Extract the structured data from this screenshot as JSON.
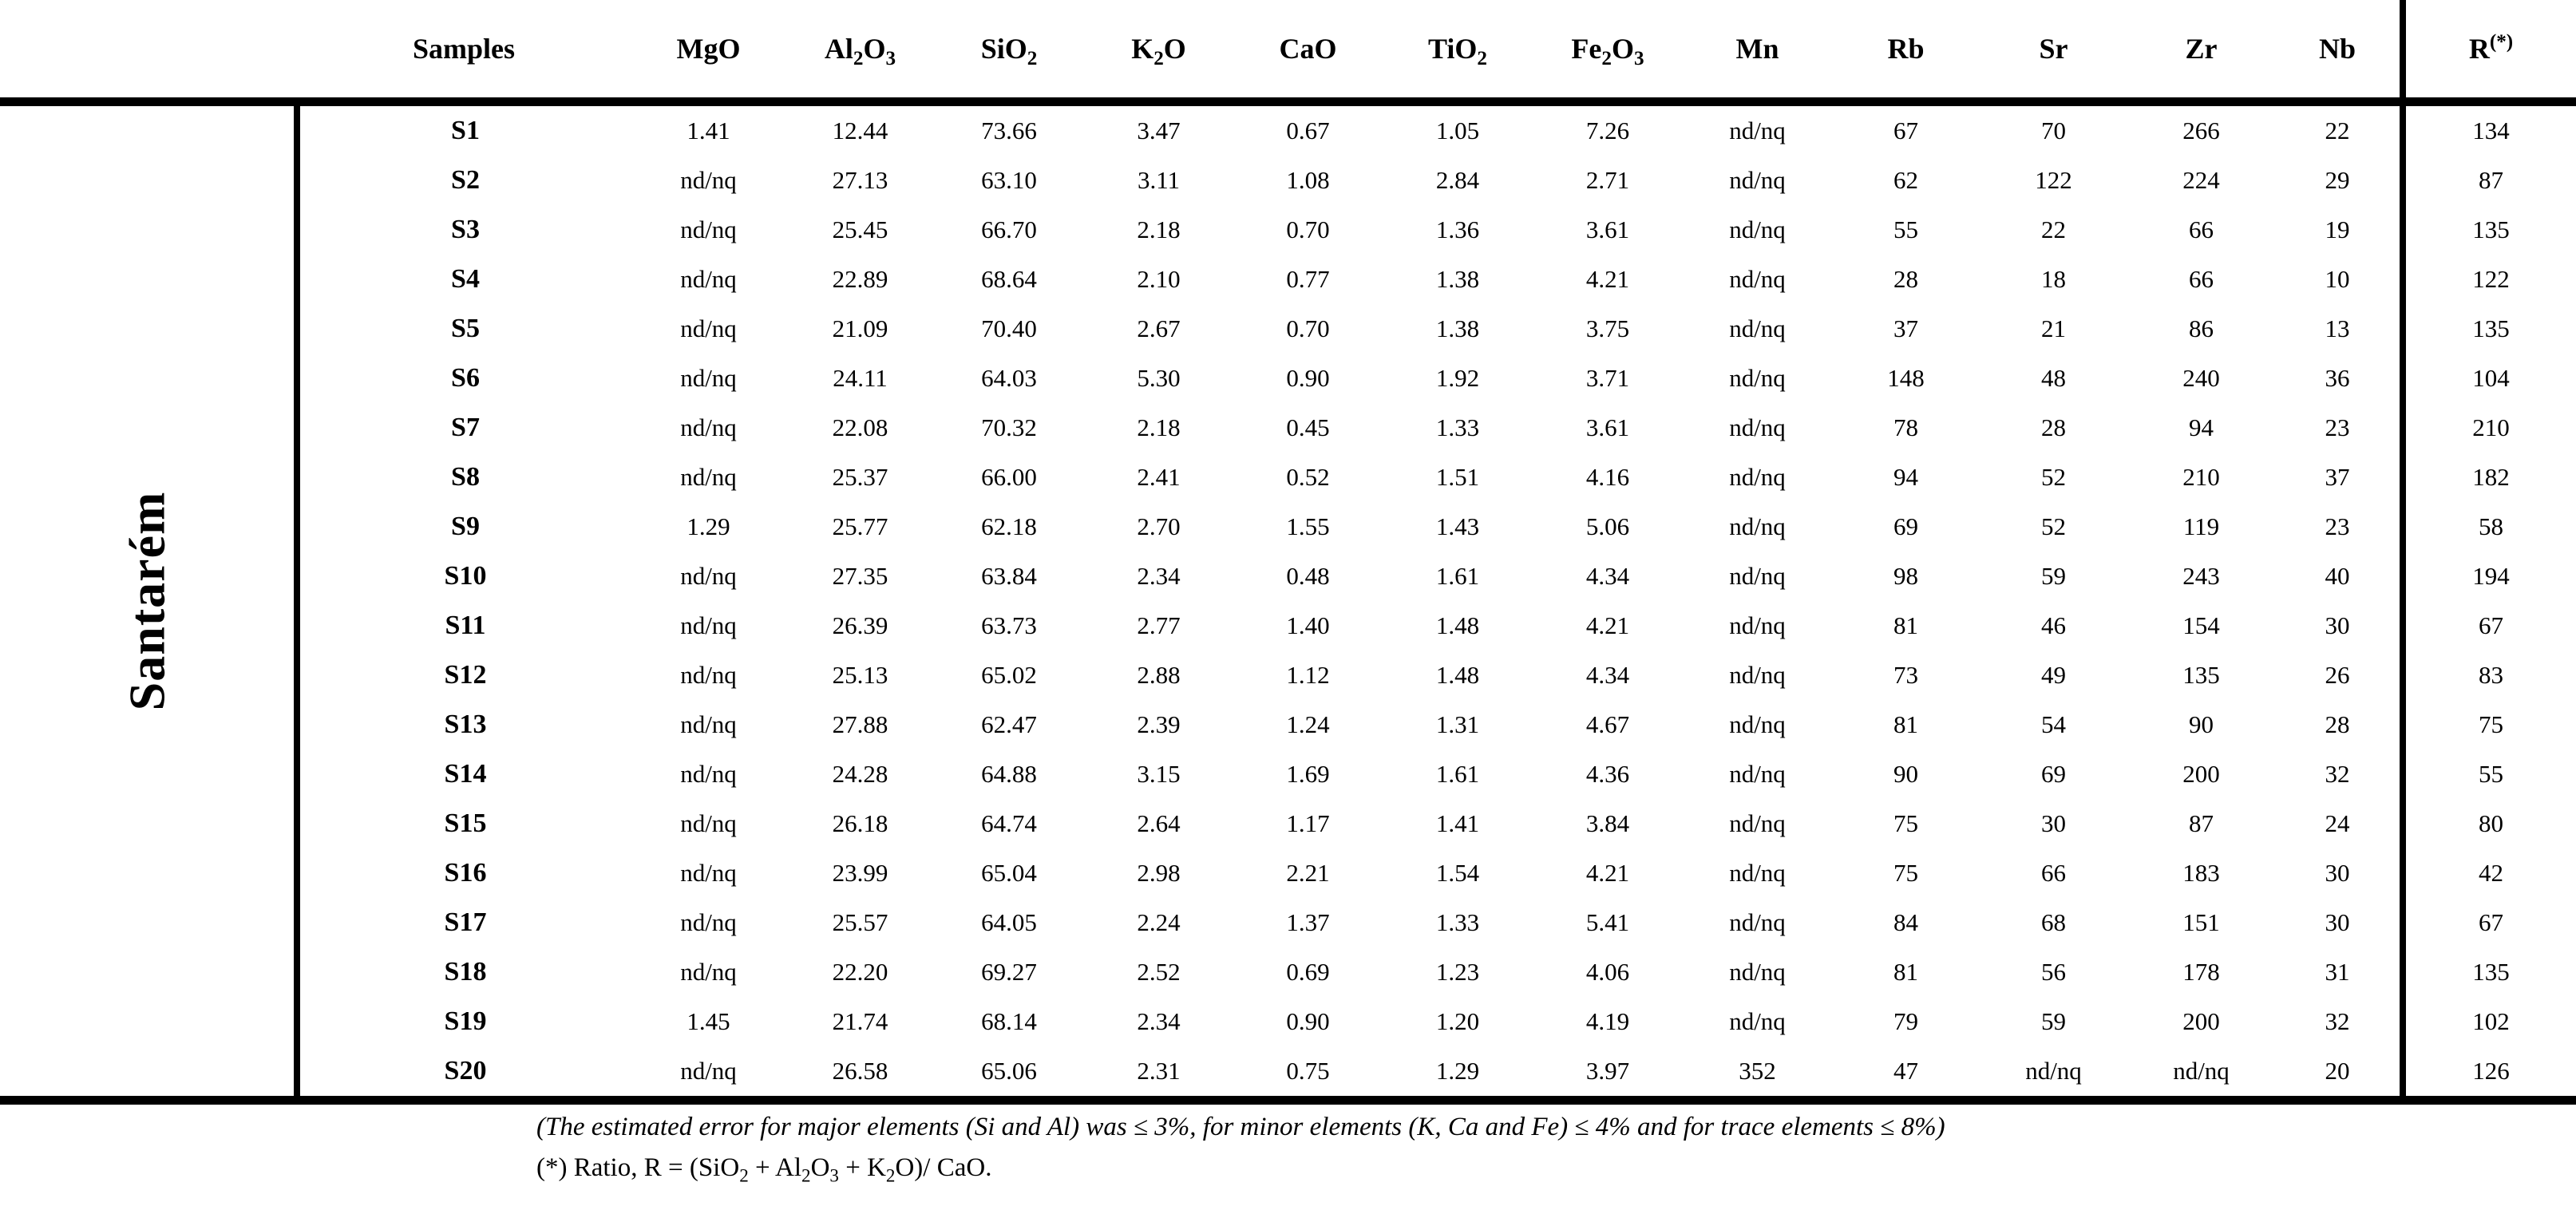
{
  "page": {
    "background": "#ffffff",
    "text_color": "#000000",
    "rule_color": "#000000"
  },
  "table": {
    "group_label": "Santarém",
    "na_marker": "nd/nq",
    "columns": [
      {
        "id": "samples",
        "label": "Samples",
        "fmt": "plain"
      },
      {
        "id": "mgo",
        "label": "MgO",
        "fmt": "chem"
      },
      {
        "id": "al2o3",
        "label": "Al2O3",
        "fmt": "chem"
      },
      {
        "id": "sio2",
        "label": "SiO2",
        "fmt": "chem"
      },
      {
        "id": "k2o",
        "label": "K2O",
        "fmt": "chem"
      },
      {
        "id": "cao",
        "label": "CaO",
        "fmt": "chem"
      },
      {
        "id": "tio2",
        "label": "TiO2",
        "fmt": "chem"
      },
      {
        "id": "fe2o3",
        "label": "Fe2O3",
        "fmt": "chem"
      },
      {
        "id": "mn",
        "label": "Mn",
        "fmt": "plain"
      },
      {
        "id": "rb",
        "label": "Rb",
        "fmt": "plain"
      },
      {
        "id": "sr",
        "label": "Sr",
        "fmt": "plain"
      },
      {
        "id": "zr",
        "label": "Zr",
        "fmt": "plain"
      },
      {
        "id": "nb",
        "label": "Nb",
        "fmt": "plain"
      },
      {
        "id": "r",
        "label": "R(*)",
        "fmt": "rsup"
      }
    ],
    "rows": [
      {
        "id": "S1",
        "values": [
          "1.41",
          "12.44",
          "73.66",
          "3.47",
          "0.67",
          "1.05",
          "7.26",
          "nd/nq",
          "67",
          "70",
          "266",
          "22",
          "134"
        ]
      },
      {
        "id": "S2",
        "values": [
          "nd/nq",
          "27.13",
          "63.10",
          "3.11",
          "1.08",
          "2.84",
          "2.71",
          "nd/nq",
          "62",
          "122",
          "224",
          "29",
          "87"
        ]
      },
      {
        "id": "S3",
        "values": [
          "nd/nq",
          "25.45",
          "66.70",
          "2.18",
          "0.70",
          "1.36",
          "3.61",
          "nd/nq",
          "55",
          "22",
          "66",
          "19",
          "135"
        ]
      },
      {
        "id": "S4",
        "values": [
          "nd/nq",
          "22.89",
          "68.64",
          "2.10",
          "0.77",
          "1.38",
          "4.21",
          "nd/nq",
          "28",
          "18",
          "66",
          "10",
          "122"
        ]
      },
      {
        "id": "S5",
        "values": [
          "nd/nq",
          "21.09",
          "70.40",
          "2.67",
          "0.70",
          "1.38",
          "3.75",
          "nd/nq",
          "37",
          "21",
          "86",
          "13",
          "135"
        ]
      },
      {
        "id": "S6",
        "values": [
          "nd/nq",
          "24.11",
          "64.03",
          "5.30",
          "0.90",
          "1.92",
          "3.71",
          "nd/nq",
          "148",
          "48",
          "240",
          "36",
          "104"
        ]
      },
      {
        "id": "S7",
        "values": [
          "nd/nq",
          "22.08",
          "70.32",
          "2.18",
          "0.45",
          "1.33",
          "3.61",
          "nd/nq",
          "78",
          "28",
          "94",
          "23",
          "210"
        ]
      },
      {
        "id": "S8",
        "values": [
          "nd/nq",
          "25.37",
          "66.00",
          "2.41",
          "0.52",
          "1.51",
          "4.16",
          "nd/nq",
          "94",
          "52",
          "210",
          "37",
          "182"
        ]
      },
      {
        "id": "S9",
        "values": [
          "1.29",
          "25.77",
          "62.18",
          "2.70",
          "1.55",
          "1.43",
          "5.06",
          "nd/nq",
          "69",
          "52",
          "119",
          "23",
          "58"
        ]
      },
      {
        "id": "S10",
        "values": [
          "nd/nq",
          "27.35",
          "63.84",
          "2.34",
          "0.48",
          "1.61",
          "4.34",
          "nd/nq",
          "98",
          "59",
          "243",
          "40",
          "194"
        ]
      },
      {
        "id": "S11",
        "values": [
          "nd/nq",
          "26.39",
          "63.73",
          "2.77",
          "1.40",
          "1.48",
          "4.21",
          "nd/nq",
          "81",
          "46",
          "154",
          "30",
          "67"
        ]
      },
      {
        "id": "S12",
        "values": [
          "nd/nq",
          "25.13",
          "65.02",
          "2.88",
          "1.12",
          "1.48",
          "4.34",
          "nd/nq",
          "73",
          "49",
          "135",
          "26",
          "83"
        ]
      },
      {
        "id": "S13",
        "values": [
          "nd/nq",
          "27.88",
          "62.47",
          "2.39",
          "1.24",
          "1.31",
          "4.67",
          "nd/nq",
          "81",
          "54",
          "90",
          "28",
          "75"
        ]
      },
      {
        "id": "S14",
        "values": [
          "nd/nq",
          "24.28",
          "64.88",
          "3.15",
          "1.69",
          "1.61",
          "4.36",
          "nd/nq",
          "90",
          "69",
          "200",
          "32",
          "55"
        ]
      },
      {
        "id": "S15",
        "values": [
          "nd/nq",
          "26.18",
          "64.74",
          "2.64",
          "1.17",
          "1.41",
          "3.84",
          "nd/nq",
          "75",
          "30",
          "87",
          "24",
          "80"
        ]
      },
      {
        "id": "S16",
        "values": [
          "nd/nq",
          "23.99",
          "65.04",
          "2.98",
          "2.21",
          "1.54",
          "4.21",
          "nd/nq",
          "75",
          "66",
          "183",
          "30",
          "42"
        ]
      },
      {
        "id": "S17",
        "values": [
          "nd/nq",
          "25.57",
          "64.05",
          "2.24",
          "1.37",
          "1.33",
          "5.41",
          "nd/nq",
          "84",
          "68",
          "151",
          "30",
          "67"
        ]
      },
      {
        "id": "S18",
        "values": [
          "nd/nq",
          "22.20",
          "69.27",
          "2.52",
          "0.69",
          "1.23",
          "4.06",
          "nd/nq",
          "81",
          "56",
          "178",
          "31",
          "135"
        ]
      },
      {
        "id": "S19",
        "values": [
          "1.45",
          "21.74",
          "68.14",
          "2.34",
          "0.90",
          "1.20",
          "4.19",
          "nd/nq",
          "79",
          "59",
          "200",
          "32",
          "102"
        ]
      },
      {
        "id": "S20",
        "values": [
          "nd/nq",
          "26.58",
          "65.06",
          "2.31",
          "0.75",
          "1.29",
          "3.97",
          "352",
          "47",
          "nd/nq",
          "nd/nq",
          "20",
          "126"
        ]
      }
    ]
  },
  "footnotes": {
    "error_note": "(The estimated error for major elements (Si and Al) was ≤ 3%, for minor elements (K, Ca and Fe) ≤ 4% and for trace elements ≤ 8%)",
    "ratio_note": "(*) Ratio, R = (SiO2 + Al2O3 + K2O)/ CaO."
  }
}
